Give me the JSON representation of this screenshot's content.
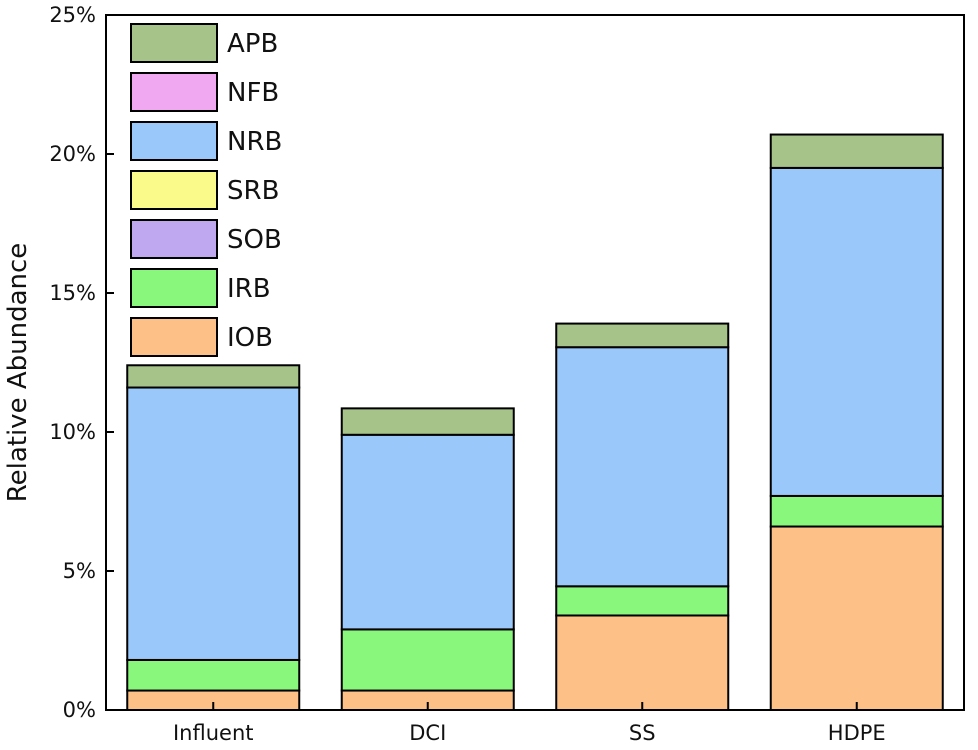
{
  "chart_data": {
    "type": "bar",
    "stacked": true,
    "title": "",
    "xlabel": "",
    "ylabel": "Relative Abundance",
    "ylim": [
      0,
      25
    ],
    "yticks": [
      "0%",
      "5%",
      "10%",
      "15%",
      "20%",
      "25%"
    ],
    "categories": [
      "Influent",
      "DCI",
      "SS",
      "HDPE"
    ],
    "legend_position": "top-left",
    "series": [
      {
        "name": "IOB",
        "color": "#FDC086",
        "values": [
          0.7,
          0.7,
          3.4,
          6.6
        ]
      },
      {
        "name": "IRB",
        "color": "#88F77C",
        "values": [
          1.1,
          2.2,
          1.05,
          1.1
        ]
      },
      {
        "name": "SOB",
        "color": "#C0A8F0",
        "values": [
          0.0,
          0.0,
          0.0,
          0.0
        ]
      },
      {
        "name": "SRB",
        "color": "#FAFA8A",
        "values": [
          0.0,
          0.0,
          0.0,
          0.0
        ]
      },
      {
        "name": "NRB",
        "color": "#9BC8FA",
        "values": [
          9.8,
          7.0,
          8.6,
          11.8
        ]
      },
      {
        "name": "NFB",
        "color": "#F0A8F0",
        "values": [
          0.0,
          0.0,
          0.0,
          0.0
        ]
      },
      {
        "name": "APB",
        "color": "#A6C48A",
        "values": [
          0.8,
          0.95,
          0.85,
          1.2
        ]
      }
    ]
  }
}
